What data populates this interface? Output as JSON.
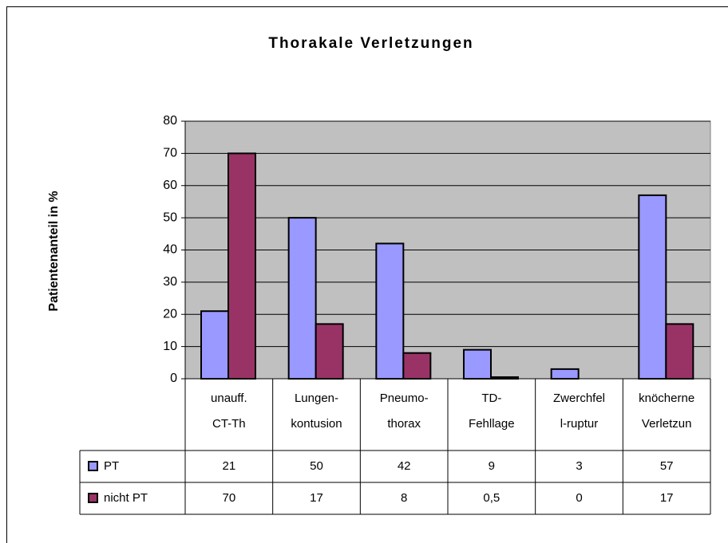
{
  "chart_data": {
    "type": "bar",
    "title": "Thorakale Verletzungen",
    "y_label": "Patientenanteil in %",
    "categories": [
      "unauff.\nCT-Th",
      "Lungen-\nkontusion",
      "Pneumo-\nthorax",
      "TD-\nFehllage",
      "Zwerchfel\nl-ruptur",
      "knöcherne\nVerletzun"
    ],
    "series": [
      {
        "name": "PT",
        "color": "#9999ff",
        "values": [
          21,
          50,
          42,
          9,
          3,
          57
        ]
      },
      {
        "name": "nicht PT",
        "color": "#993366",
        "values": [
          70,
          17,
          8,
          0.5,
          0,
          17
        ],
        "value_labels": [
          "70",
          "17",
          "8",
          "0,5",
          "0",
          "17"
        ]
      }
    ],
    "ylim": [
      0,
      80
    ],
    "yticks": [
      0,
      10,
      20,
      30,
      40,
      50,
      60,
      70,
      80
    ],
    "grid": true,
    "data_table": true
  }
}
